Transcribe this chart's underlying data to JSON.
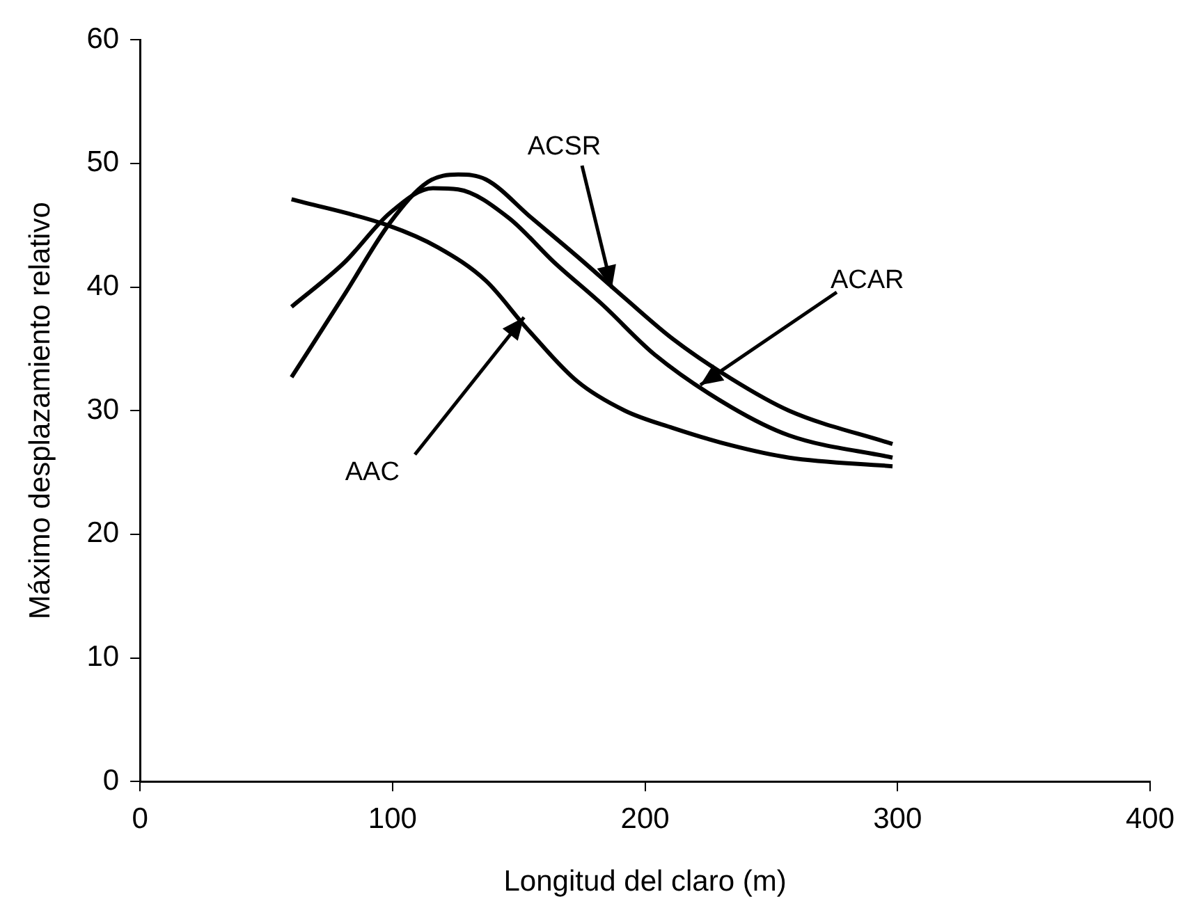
{
  "chart_data": {
    "type": "line",
    "xlabel": "Longitud del claro (m)",
    "ylabel": "Máximo desplazamiento relativo",
    "xlim": [
      0,
      400
    ],
    "xticks": [
      0,
      100,
      200,
      300,
      400
    ],
    "ylim": [
      0,
      60
    ],
    "yticks": [
      0,
      10,
      20,
      30,
      40,
      50,
      60
    ],
    "grid": false,
    "legend": false,
    "marker": "none",
    "line_style": "solid",
    "series": [
      {
        "color": "#000000",
        "x": [
          60,
          81,
          99,
          114,
          126,
          137,
          155,
          173,
          192,
          211,
          234,
          257,
          298
        ],
        "values": [
          32.7,
          39.4,
          45.2,
          48.5,
          49.1,
          48.7,
          45.6,
          42.5,
          39.1,
          35.8,
          32.6,
          30,
          27.3
        ]
      },
      {
        "color": "#000000",
        "x": [
          60,
          81,
          99,
          116,
          126,
          146,
          164,
          183,
          204,
          234,
          257,
          298
        ],
        "values": [
          38.4,
          42,
          46,
          48,
          47.9,
          45.6,
          42,
          38.6,
          34.5,
          30.3,
          28,
          26.2
        ]
      },
      {
        "color": "#000000",
        "x": [
          60,
          98,
          118,
          137,
          153,
          173,
          192,
          211,
          234,
          257,
          298
        ],
        "values": [
          47.1,
          45,
          43.2,
          40.5,
          36.7,
          32.4,
          30,
          28.6,
          27.2,
          26.2,
          25.5
        ]
      }
    ],
    "annotations": [
      {
        "text": "ACSR",
        "x": 187,
        "y": 39.9
      },
      {
        "text": "ACAR",
        "x": 222,
        "y": 32.1
      },
      {
        "text": "AAC",
        "x": 152,
        "y": 37.5
      }
    ]
  }
}
